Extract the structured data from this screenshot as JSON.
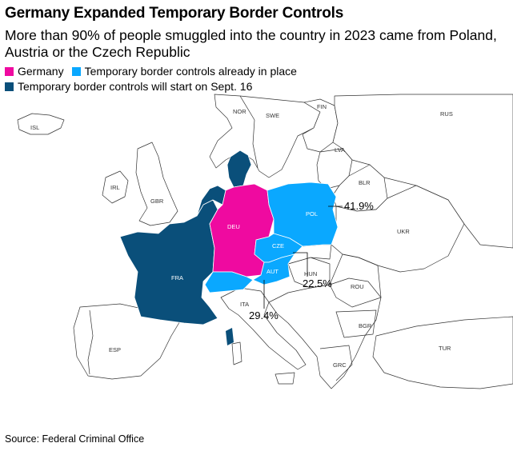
{
  "title": "Germany Expanded Temporary Border Controls",
  "subtitle": "More than 90% of people smuggled into the country in 2023 came from Poland, Austria or the Czech Republic",
  "legend": [
    {
      "label": "Germany",
      "color": "#ef0aa0"
    },
    {
      "label": "Temporary border controls already in place",
      "color": "#0aa8ff"
    },
    {
      "label": "Temporary border controls will start on Sept. 16",
      "color": "#0a4f7a"
    }
  ],
  "countries": {
    "isl": "ISL",
    "nor": "NOR",
    "swe": "SWE",
    "fin": "FIN",
    "rus": "RUS",
    "lva": "LVA",
    "irl": "IRL",
    "gbr": "GBR",
    "blr": "BLR",
    "deu": "DEU",
    "pol": "POL",
    "ukr": "UKR",
    "cze": "CZE",
    "fra": "FRA",
    "aut": "AUT",
    "hun": "HUN",
    "rou": "ROU",
    "ita": "ITA",
    "bgr": "BGR",
    "esp": "ESP",
    "tur": "TUR",
    "grc": "GRC"
  },
  "callouts": {
    "pol": "41.9%",
    "cze": "22.5%",
    "aut": "29.4%"
  },
  "source": "Source: Federal Criminal Office"
}
